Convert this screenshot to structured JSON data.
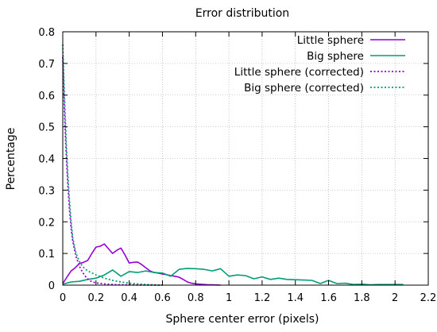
{
  "chart_data": {
    "type": "line",
    "title": "Error distribution",
    "xlabel": "Sphere center error (pixels)",
    "ylabel": "Percentage",
    "xlim": [
      0,
      2.2
    ],
    "ylim": [
      0,
      0.8
    ],
    "x_ticks": [
      0,
      0.2,
      0.4,
      0.6,
      0.8,
      1,
      1.2,
      1.4,
      1.6,
      1.8,
      2,
      2.2
    ],
    "x_tick_labels": [
      "0",
      "0.2",
      "0.4",
      "0.6",
      "0.8",
      "1",
      "1.2",
      "1.4",
      "1.6",
      "1.8",
      "2",
      "2.2"
    ],
    "y_ticks": [
      0,
      0.1,
      0.2,
      0.3,
      0.4,
      0.5,
      0.6,
      0.7,
      0.8
    ],
    "y_tick_labels": [
      "0",
      "0.1",
      "0.2",
      "0.3",
      "0.4",
      "0.5",
      "0.6",
      "0.7",
      "0.8"
    ],
    "grid": true,
    "legend_position": "top-right",
    "series": [
      {
        "name": "Little sphere",
        "color": "#9400d3",
        "style": "solid",
        "x": [
          0,
          0.025,
          0.05,
          0.075,
          0.1,
          0.125,
          0.15,
          0.175,
          0.2,
          0.225,
          0.25,
          0.275,
          0.3,
          0.325,
          0.35,
          0.375,
          0.4,
          0.425,
          0.45,
          0.475,
          0.5,
          0.525,
          0.55,
          0.575,
          0.6,
          0.625,
          0.65,
          0.675,
          0.7,
          0.725,
          0.75,
          0.775,
          0.8,
          0.825,
          0.85,
          0.875,
          0.9,
          0.925,
          0.95
        ],
        "y": [
          0.005,
          0.025,
          0.045,
          0.055,
          0.068,
          0.072,
          0.078,
          0.1,
          0.12,
          0.123,
          0.13,
          0.115,
          0.1,
          0.11,
          0.117,
          0.095,
          0.07,
          0.072,
          0.073,
          0.065,
          0.055,
          0.045,
          0.04,
          0.038,
          0.035,
          0.033,
          0.03,
          0.028,
          0.025,
          0.018,
          0.01,
          0.006,
          0.004,
          0.003,
          0.002,
          0.001,
          0.001,
          0.0005,
          0
        ]
      },
      {
        "name": "Big sphere",
        "color": "#009e73",
        "style": "solid",
        "x": [
          0,
          0.05,
          0.1,
          0.15,
          0.2,
          0.25,
          0.3,
          0.35,
          0.4,
          0.45,
          0.5,
          0.55,
          0.6,
          0.65,
          0.7,
          0.75,
          0.8,
          0.85,
          0.9,
          0.95,
          1,
          1.05,
          1.1,
          1.15,
          1.2,
          1.25,
          1.3,
          1.35,
          1.4,
          1.45,
          1.5,
          1.55,
          1.6,
          1.65,
          1.7,
          1.75,
          1.8,
          1.85,
          1.9,
          1.95,
          2,
          2.05
        ],
        "y": [
          0.003,
          0.01,
          0.012,
          0.018,
          0.022,
          0.032,
          0.048,
          0.028,
          0.043,
          0.04,
          0.045,
          0.04,
          0.038,
          0.028,
          0.05,
          0.053,
          0.052,
          0.05,
          0.045,
          0.052,
          0.028,
          0.032,
          0.03,
          0.02,
          0.026,
          0.018,
          0.022,
          0.018,
          0.017,
          0.016,
          0.015,
          0.005,
          0.015,
          0.005,
          0.006,
          0.002,
          0.003,
          0.001,
          0.002,
          0.002,
          0.002,
          0.002
        ]
      },
      {
        "name": "Little sphere (corrected)",
        "color": "#9400d3",
        "style": "dotted",
        "x": [
          0,
          0.01,
          0.02,
          0.03,
          0.04,
          0.05,
          0.06,
          0.08,
          0.1,
          0.12,
          0.14,
          0.16,
          0.18,
          0.2,
          0.25,
          0.3,
          0.35,
          0.4,
          0.5,
          0.6
        ],
        "y": [
          0.72,
          0.55,
          0.42,
          0.32,
          0.24,
          0.18,
          0.14,
          0.09,
          0.06,
          0.04,
          0.025,
          0.015,
          0.01,
          0.007,
          0.004,
          0.002,
          0.001,
          0.0008,
          0.0003,
          0
        ]
      },
      {
        "name": "Big sphere (corrected)",
        "color": "#009e73",
        "style": "dotted",
        "x": [
          0,
          0.01,
          0.02,
          0.03,
          0.04,
          0.05,
          0.06,
          0.08,
          0.1,
          0.12,
          0.15,
          0.2,
          0.25,
          0.3,
          0.35,
          0.4,
          0.45,
          0.5,
          0.55,
          0.6
        ],
        "y": [
          0.76,
          0.6,
          0.46,
          0.35,
          0.27,
          0.2,
          0.15,
          0.1,
          0.075,
          0.058,
          0.045,
          0.032,
          0.022,
          0.015,
          0.01,
          0.006,
          0.004,
          0.002,
          0.001,
          0
        ]
      }
    ]
  }
}
